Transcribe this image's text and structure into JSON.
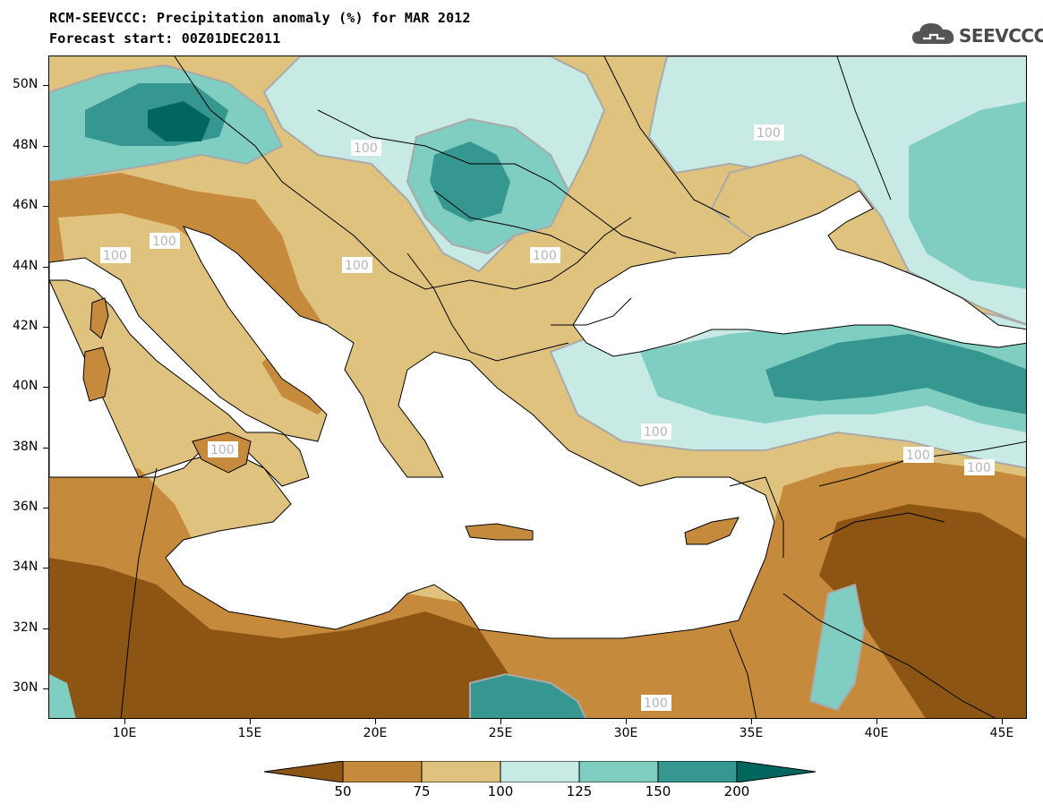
{
  "title": {
    "line1": "RCM-SEEVCCC: Precipitation anomaly (%) for MAR 2012",
    "line2": "Forecast start: 00Z01DEC2011"
  },
  "logo": {
    "text": "SEEVCCC",
    "icon": "cloud-icon"
  },
  "map": {
    "lat_labels": [
      "50N",
      "48N",
      "46N",
      "44N",
      "42N",
      "40N",
      "38N",
      "36N",
      "34N",
      "32N",
      "30N"
    ],
    "lon_labels": [
      "10E",
      "15E",
      "20E",
      "25E",
      "30E",
      "35E",
      "40E",
      "45E"
    ],
    "contour_label": "100",
    "region": "Eastern Mediterranean / Balkans / Black Sea",
    "lon_range": [
      7,
      46
    ],
    "lat_range": [
      29,
      51
    ]
  },
  "colorbar": {
    "labels": [
      "50",
      "75",
      "100",
      "125",
      "150",
      "200"
    ],
    "colors": [
      "#8c5513",
      "#c68a3c",
      "#dfc27d",
      "#c7eae5",
      "#80cdc1",
      "#35978f",
      "#01665e"
    ]
  },
  "colors": {
    "very_dry": "#8c5513",
    "dry": "#c68a3c",
    "slightly_dry": "#dfc27d",
    "slightly_wet": "#c7eae5",
    "wet": "#80cdc1",
    "very_wet": "#35978f",
    "extreme_wet": "#01665e",
    "contour_line": "#a9a9a9"
  }
}
